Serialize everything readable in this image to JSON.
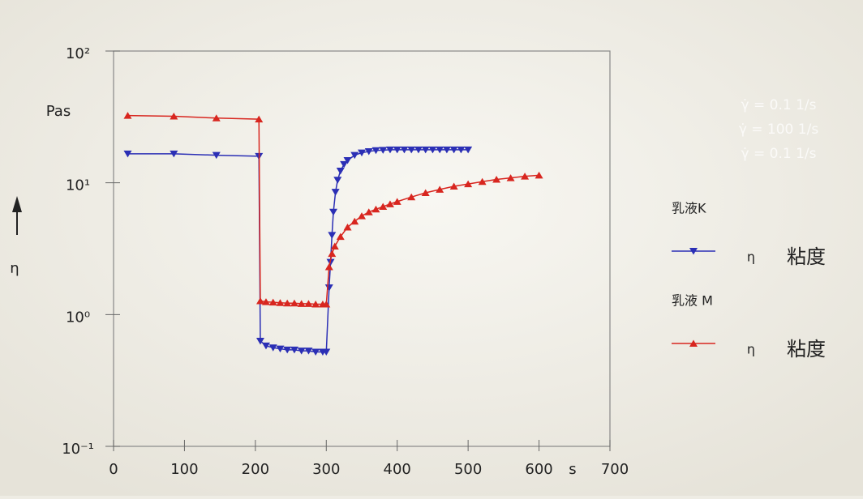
{
  "chart_data": {
    "type": "line",
    "y_label": "η",
    "y_unit": "Pas",
    "x_unit": "s",
    "log_y": true,
    "xlim": [
      0,
      700
    ],
    "xticks": [
      0,
      100,
      200,
      300,
      400,
      500,
      600,
      700
    ],
    "ylim": [
      0.1,
      100
    ],
    "yticks": [
      {
        "value": 0.1,
        "label": "10⁻¹"
      },
      {
        "value": 1,
        "label": "10⁰"
      },
      {
        "value": 10,
        "label": "10¹"
      },
      {
        "value": 100,
        "label": "10²"
      }
    ],
    "annotations": [
      "γ̇ = 0.1 1/s",
      "γ̇ = 100 1/s",
      "γ̇ = 0.1 1/s"
    ],
    "series": [
      {
        "name": "乳液K",
        "symbol": "η",
        "quantity": "粘度",
        "color": "#2b2fb5",
        "marker": "down",
        "x": [
          20,
          85,
          145,
          205,
          207,
          215,
          225,
          235,
          245,
          255,
          265,
          275,
          285,
          295,
          300,
          304,
          306,
          308,
          310,
          313,
          316,
          320,
          325,
          330,
          340,
          350,
          360,
          370,
          380,
          390,
          400,
          410,
          420,
          430,
          440,
          450,
          460,
          470,
          480,
          490,
          500
        ],
        "values": [
          16.6,
          16.6,
          16.2,
          15.9,
          0.63,
          0.58,
          0.56,
          0.55,
          0.54,
          0.54,
          0.53,
          0.53,
          0.52,
          0.52,
          0.52,
          1.6,
          2.5,
          4,
          6,
          8.5,
          10.5,
          12.3,
          13.8,
          14.8,
          16.2,
          16.9,
          17.3,
          17.6,
          17.7,
          17.8,
          17.8,
          17.8,
          17.8,
          17.8,
          17.8,
          17.8,
          17.8,
          17.8,
          17.8,
          17.8,
          17.8
        ]
      },
      {
        "name": "乳液 M",
        "symbol": "η",
        "quantity": "粘度",
        "color": "#d8261f",
        "marker": "up",
        "x": [
          20,
          85,
          145,
          205,
          207,
          215,
          225,
          235,
          245,
          255,
          265,
          275,
          285,
          295,
          300,
          304,
          308,
          312,
          320,
          330,
          340,
          350,
          360,
          370,
          380,
          390,
          400,
          420,
          440,
          460,
          480,
          500,
          520,
          540,
          560,
          580,
          600
        ],
        "values": [
          32.4,
          32,
          31,
          30.4,
          1.27,
          1.25,
          1.24,
          1.23,
          1.22,
          1.22,
          1.21,
          1.21,
          1.2,
          1.2,
          1.2,
          2.3,
          2.9,
          3.3,
          3.9,
          4.6,
          5.1,
          5.6,
          6,
          6.3,
          6.6,
          6.9,
          7.2,
          7.8,
          8.4,
          8.9,
          9.4,
          9.8,
          10.2,
          10.6,
          10.9,
          11.2,
          11.4
        ]
      }
    ]
  }
}
